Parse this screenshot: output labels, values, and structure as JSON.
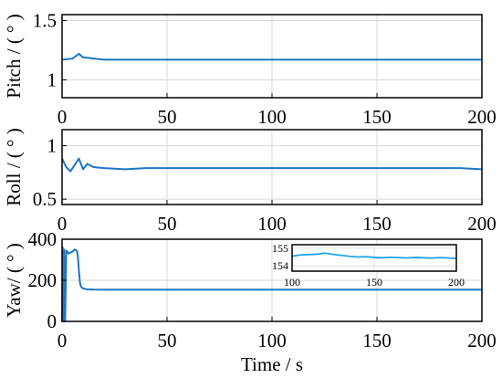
{
  "colors": {
    "series": "#1f77c4",
    "inset_series": "#23a3e6",
    "grid": "#d9d9d9",
    "axis": "#000000",
    "background": "#ffffff"
  },
  "chart_data": [
    {
      "type": "line",
      "id": "pitch",
      "xlabel": "",
      "ylabel": "Pitch / ( ° )",
      "xlim": [
        0,
        200
      ],
      "ylim": [
        0.85,
        1.55
      ],
      "xticks": [
        0,
        50,
        100,
        150,
        200
      ],
      "yticks": [
        1,
        1.5
      ],
      "grid": true,
      "series": [
        {
          "x": [
            0,
            5,
            8,
            10,
            15,
            20,
            30,
            40,
            50,
            60,
            70,
            80,
            90,
            100,
            110,
            120,
            130,
            140,
            150,
            160,
            170,
            180,
            190,
            200
          ],
          "values": [
            1.17,
            1.18,
            1.22,
            1.19,
            1.18,
            1.17,
            1.17,
            1.17,
            1.17,
            1.17,
            1.17,
            1.17,
            1.17,
            1.17,
            1.17,
            1.17,
            1.17,
            1.17,
            1.17,
            1.17,
            1.17,
            1.17,
            1.17,
            1.17
          ]
        }
      ]
    },
    {
      "type": "line",
      "id": "roll",
      "xlabel": "",
      "ylabel": "Roll / ( ° )",
      "xlim": [
        0,
        200
      ],
      "ylim": [
        0.45,
        1.15
      ],
      "xticks": [
        0,
        50,
        100,
        150,
        200
      ],
      "yticks": [
        0.5,
        1
      ],
      "grid": true,
      "series": [
        {
          "x": [
            0,
            2,
            4,
            6,
            8,
            10,
            12,
            15,
            20,
            30,
            40,
            50,
            60,
            70,
            80,
            90,
            100,
            110,
            120,
            130,
            140,
            150,
            160,
            170,
            180,
            190,
            200
          ],
          "values": [
            0.88,
            0.8,
            0.76,
            0.82,
            0.88,
            0.78,
            0.83,
            0.8,
            0.79,
            0.78,
            0.79,
            0.79,
            0.79,
            0.79,
            0.79,
            0.79,
            0.79,
            0.79,
            0.79,
            0.79,
            0.79,
            0.79,
            0.79,
            0.79,
            0.79,
            0.79,
            0.78
          ]
        }
      ]
    },
    {
      "type": "line",
      "id": "yaw",
      "xlabel": "Time / s",
      "ylabel": "Yaw/ ( ° )",
      "xlim": [
        0,
        200
      ],
      "ylim": [
        0,
        400
      ],
      "xticks": [
        0,
        50,
        100,
        150,
        200
      ],
      "yticks": [
        0,
        200,
        400
      ],
      "grid": true,
      "series": [
        {
          "x": [
            0,
            0.3,
            0.6,
            1.0,
            1.5,
            2.0,
            2.5,
            3,
            4,
            5,
            6,
            7,
            7.5,
            8,
            8.5,
            9,
            10,
            11,
            12,
            15,
            20,
            30,
            50,
            100,
            150,
            200
          ],
          "values": [
            0,
            360,
            0,
            350,
            0,
            345,
            340,
            330,
            335,
            340,
            350,
            345,
            320,
            250,
            190,
            170,
            160,
            158,
            156,
            155,
            154.5,
            154.5,
            154.4,
            154.4,
            154.3,
            154.3
          ]
        }
      ],
      "inset": {
        "xlim": [
          100,
          200
        ],
        "ylim": [
          153.7,
          155.2
        ],
        "xticks": [
          100,
          150,
          200
        ],
        "yticks": [
          154,
          155
        ],
        "x": [
          100,
          105,
          110,
          115,
          120,
          125,
          130,
          135,
          140,
          145,
          150,
          155,
          160,
          165,
          170,
          175,
          180,
          185,
          190,
          195,
          200
        ],
        "values": [
          154.55,
          154.62,
          154.64,
          154.66,
          154.72,
          154.65,
          154.6,
          154.54,
          154.5,
          154.52,
          154.48,
          154.46,
          154.49,
          154.47,
          154.45,
          154.48,
          154.46,
          154.44,
          154.47,
          154.45,
          154.42
        ]
      }
    }
  ]
}
